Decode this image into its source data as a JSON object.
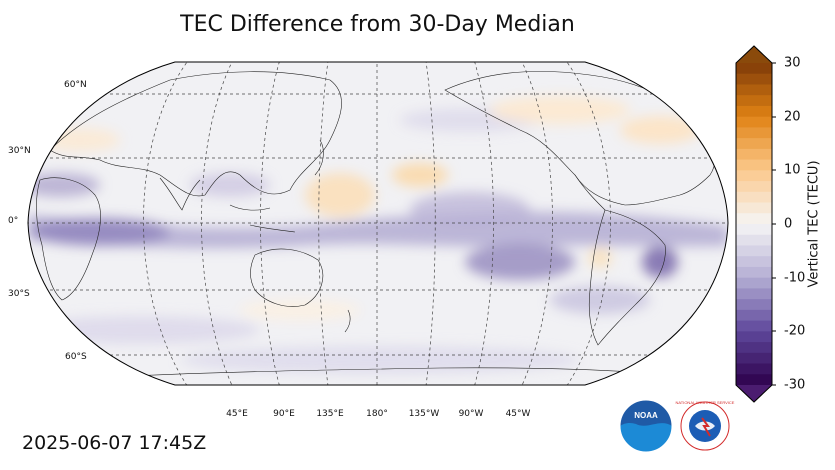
{
  "title": "TEC Difference from 30-Day Median",
  "timestamp": "2025-06-07 17:45Z",
  "map": {
    "projection": "Robinson (central meridian 180°)",
    "lat_labels": [
      "60°N",
      "30°N",
      "0°",
      "30°S",
      "60°S"
    ],
    "lon_labels": [
      "45°E",
      "90°E",
      "135°E",
      "180°",
      "135°W",
      "90°W",
      "45°W"
    ]
  },
  "colorbar": {
    "label": "Vertical TEC (TECU)",
    "range": [
      -30,
      30
    ],
    "ticks": [
      "30",
      "20",
      "10",
      "0",
      "-10",
      "-20",
      "-30"
    ],
    "colormap": "PuOr_r",
    "negative_color": "#4b1c70",
    "positive_color": "#8a4a0b"
  },
  "logos": {
    "noaa": "NOAA",
    "nws": "NATIONAL WEATHER SERVICE"
  }
}
